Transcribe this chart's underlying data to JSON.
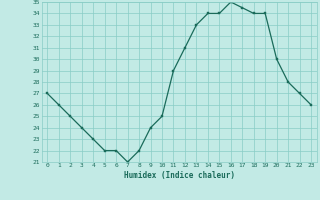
{
  "x": [
    0,
    1,
    2,
    3,
    4,
    5,
    6,
    7,
    8,
    9,
    10,
    11,
    12,
    13,
    14,
    15,
    16,
    17,
    18,
    19,
    20,
    21,
    22,
    23
  ],
  "y": [
    27,
    26,
    25,
    24,
    23,
    22,
    22,
    21,
    22,
    24,
    25,
    29,
    31,
    33,
    34,
    34,
    35,
    34.5,
    34,
    34,
    30,
    28,
    27,
    26
  ],
  "line_color": "#1a6b5a",
  "marker_color": "#1a6b5a",
  "bg_color": "#c2eae5",
  "grid_color": "#89cdc6",
  "axis_label_color": "#1a6b5a",
  "tick_color": "#1a6b5a",
  "xlabel": "Humidex (Indice chaleur)",
  "ylim": [
    21,
    35
  ],
  "xlim": [
    -0.5,
    23.5
  ],
  "yticks": [
    21,
    22,
    23,
    24,
    25,
    26,
    27,
    28,
    29,
    30,
    31,
    32,
    33,
    34,
    35
  ],
  "xticks": [
    0,
    1,
    2,
    3,
    4,
    5,
    6,
    7,
    8,
    9,
    10,
    11,
    12,
    13,
    14,
    15,
    16,
    17,
    18,
    19,
    20,
    21,
    22,
    23
  ]
}
